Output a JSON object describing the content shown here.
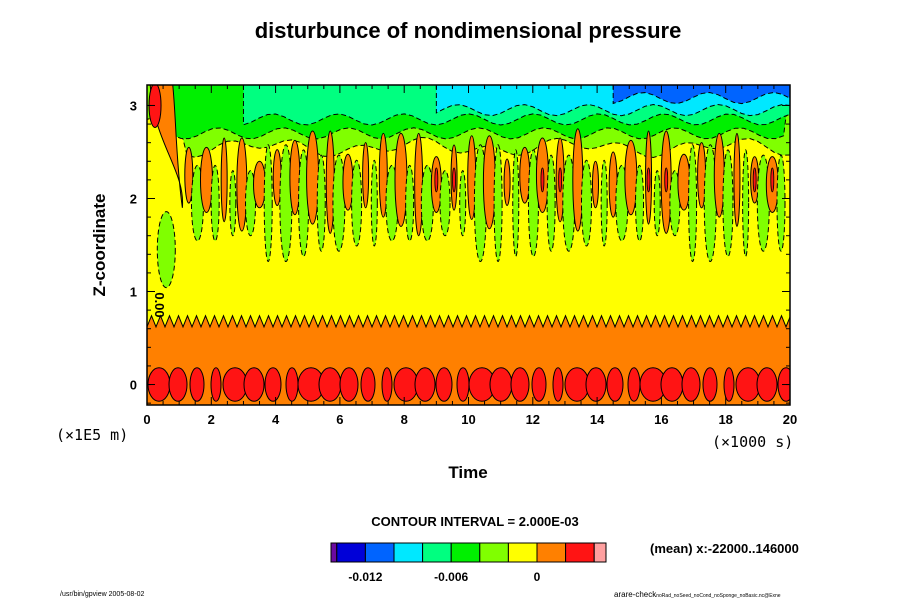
{
  "chart_data": {
    "type": "contour",
    "title": "disturbunce of nondimensional pressure",
    "xlabel": "Time",
    "ylabel": "Z-coordinate",
    "x_unit_label": "(×1000 s)",
    "y_unit_label": "(×1E5 m)",
    "xlim": [
      0,
      20
    ],
    "ylim": [
      -0.22,
      3.22
    ],
    "x_ticks": [
      "0",
      "2",
      "4",
      "6",
      "8",
      "10",
      "12",
      "14",
      "16",
      "18",
      "20"
    ],
    "y_ticks": [
      "0",
      "1",
      "2",
      "3"
    ],
    "contour_label": "0.00",
    "contour_interval_text": "CONTOUR INTERVAL = 2.000E-03",
    "mean_text": "(mean) x:-22000..146000",
    "colorbar": {
      "levels": [
        -0.014,
        -0.012,
        -0.01,
        -0.008,
        -0.006,
        -0.004,
        -0.002,
        0,
        0.002,
        0.004
      ],
      "colors": [
        "#6a0aa0",
        "#0000d8",
        "#0064ff",
        "#00e8ff",
        "#00ff80",
        "#00f000",
        "#80ff00",
        "#ffff00",
        "#ff8000",
        "#ff1414",
        "#ffa0a0"
      ],
      "tick_labels": [
        {
          "value": -0.012,
          "label": "-0.012"
        },
        {
          "value": -0.006,
          "label": "-0.006"
        },
        {
          "value": 0,
          "label": "0"
        }
      ]
    },
    "field_description_regions": {
      "z_below_0.7": "positive (orange 0..0.002, red cores near z=0)",
      "z_0.7_to_1.6": "near zero (yellow)",
      "z_1.6_to_2.7": "alternating vertical cells, orange positive / green negative",
      "z_above_2.7": "negative, decreasing with time to about -0.012 (blue)"
    }
  },
  "footer": {
    "left": "/usr/bin/gpview 2005-08-02",
    "right_main": "arare-check",
    "right_sub": "noRad_noSeed_noCond_noSponge_noBasic.nc@Exne"
  }
}
